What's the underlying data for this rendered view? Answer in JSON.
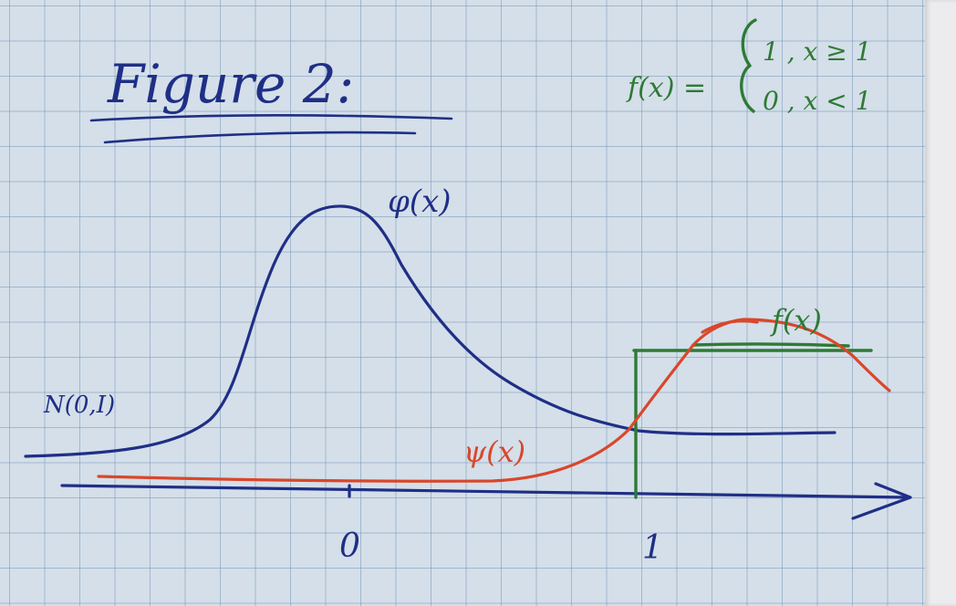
{
  "title": "Figure 2:",
  "definition": {
    "lhs": "f(x) =",
    "case1": "1 , x ≥ 1",
    "case2": "0 , x < 1"
  },
  "labels": {
    "phi": "φ(x)",
    "psi": "ψ(x)",
    "f": "f(x)",
    "normal": "N(0,I)",
    "origin": "0",
    "one": "1"
  },
  "colors": {
    "paper": "#d4dfe9",
    "grid": "#7896b9",
    "blue_ink": "#1f2f86",
    "red_ink": "#d9472b",
    "green_ink": "#2e7a35"
  }
}
